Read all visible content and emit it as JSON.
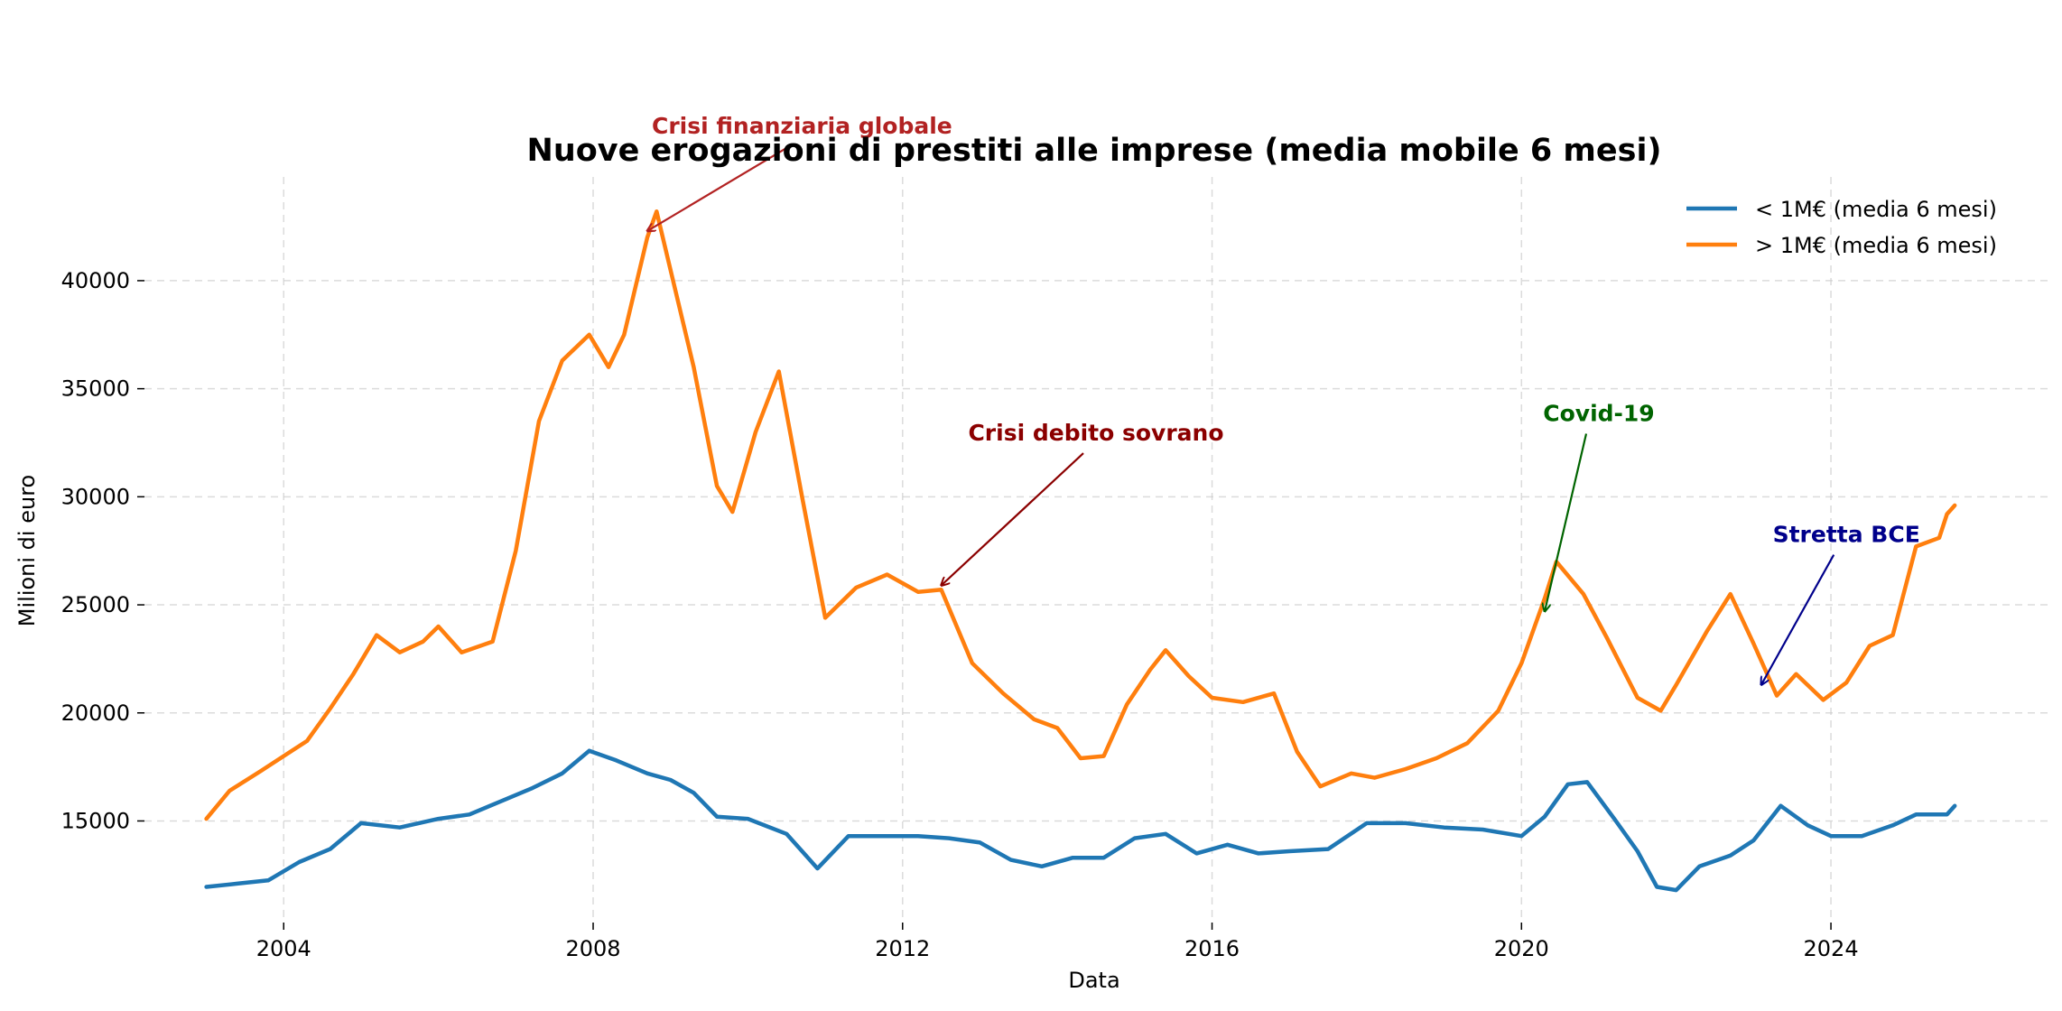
{
  "chart_data": {
    "type": "line",
    "title": "Nuove erogazioni di prestiti alle imprese (media mobile 6 mesi)",
    "xlabel": "Data",
    "ylabel": "Milioni di euro",
    "xlim": [
      2002.2,
      2026.8
    ],
    "ylim": [
      10300,
      44800
    ],
    "x_ticks": [
      2004,
      2008,
      2012,
      2016,
      2020,
      2024
    ],
    "x_tick_labels": [
      "2004",
      "2008",
      "2012",
      "2016",
      "2020",
      "2024"
    ],
    "y_ticks": [
      15000,
      20000,
      25000,
      30000,
      35000,
      40000
    ],
    "y_tick_labels": [
      "15000",
      "20000",
      "25000",
      "30000",
      "35000",
      "40000"
    ],
    "grid": true,
    "legend_position": "top-right",
    "series": [
      {
        "name": "< 1M€ (media 6 mesi)",
        "color": "#1f77b4",
        "points": [
          [
            2003.0,
            11950
          ],
          [
            2003.4,
            12100
          ],
          [
            2003.8,
            12250
          ],
          [
            2004.2,
            13100
          ],
          [
            2004.6,
            13700
          ],
          [
            2005.0,
            14900
          ],
          [
            2005.5,
            14700
          ],
          [
            2006.0,
            15100
          ],
          [
            2006.4,
            15300
          ],
          [
            2006.8,
            15900
          ],
          [
            2007.2,
            16500
          ],
          [
            2007.6,
            17200
          ],
          [
            2007.95,
            18250
          ],
          [
            2008.3,
            17800
          ],
          [
            2008.7,
            17200
          ],
          [
            2009.0,
            16900
          ],
          [
            2009.3,
            16300
          ],
          [
            2009.6,
            15200
          ],
          [
            2010.0,
            15100
          ],
          [
            2010.5,
            14400
          ],
          [
            2010.9,
            12800
          ],
          [
            2011.3,
            14300
          ],
          [
            2011.8,
            14300
          ],
          [
            2012.2,
            14300
          ],
          [
            2012.6,
            14200
          ],
          [
            2013.0,
            14000
          ],
          [
            2013.4,
            13200
          ],
          [
            2013.8,
            12900
          ],
          [
            2014.2,
            13300
          ],
          [
            2014.6,
            13300
          ],
          [
            2015.0,
            14200
          ],
          [
            2015.4,
            14400
          ],
          [
            2015.8,
            13500
          ],
          [
            2016.2,
            13900
          ],
          [
            2016.6,
            13500
          ],
          [
            2017.0,
            13600
          ],
          [
            2017.5,
            13700
          ],
          [
            2018.0,
            14900
          ],
          [
            2018.5,
            14900
          ],
          [
            2019.0,
            14700
          ],
          [
            2019.5,
            14600
          ],
          [
            2020.0,
            14300
          ],
          [
            2020.3,
            15200
          ],
          [
            2020.6,
            16700
          ],
          [
            2020.85,
            16800
          ],
          [
            2021.2,
            15100
          ],
          [
            2021.5,
            13600
          ],
          [
            2021.75,
            11950
          ],
          [
            2022.0,
            11800
          ],
          [
            2022.3,
            12900
          ],
          [
            2022.7,
            13400
          ],
          [
            2023.0,
            14100
          ],
          [
            2023.35,
            15700
          ],
          [
            2023.7,
            14800
          ],
          [
            2024.0,
            14300
          ],
          [
            2024.4,
            14300
          ],
          [
            2024.8,
            14800
          ],
          [
            2025.1,
            15300
          ],
          [
            2025.5,
            15300
          ],
          [
            2025.6,
            15700
          ]
        ]
      },
      {
        "name": "> 1M€ (media 6 mesi)",
        "color": "#ff7f0e",
        "points": [
          [
            2003.0,
            15100
          ],
          [
            2003.3,
            16400
          ],
          [
            2003.7,
            17300
          ],
          [
            2004.0,
            18000
          ],
          [
            2004.3,
            18700
          ],
          [
            2004.6,
            20200
          ],
          [
            2004.9,
            21800
          ],
          [
            2005.2,
            23600
          ],
          [
            2005.5,
            22800
          ],
          [
            2005.8,
            23300
          ],
          [
            2006.0,
            24000
          ],
          [
            2006.3,
            22800
          ],
          [
            2006.7,
            23300
          ],
          [
            2007.0,
            27500
          ],
          [
            2007.3,
            33500
          ],
          [
            2007.6,
            36300
          ],
          [
            2007.95,
            37500
          ],
          [
            2008.2,
            36000
          ],
          [
            2008.4,
            37500
          ],
          [
            2008.7,
            42000
          ],
          [
            2008.82,
            43200
          ],
          [
            2009.0,
            40500
          ],
          [
            2009.3,
            36000
          ],
          [
            2009.6,
            30500
          ],
          [
            2009.8,
            29300
          ],
          [
            2010.1,
            33000
          ],
          [
            2010.4,
            35800
          ],
          [
            2010.7,
            30000
          ],
          [
            2011.0,
            24400
          ],
          [
            2011.4,
            25800
          ],
          [
            2011.8,
            26400
          ],
          [
            2012.2,
            25600
          ],
          [
            2012.5,
            25700
          ],
          [
            2012.9,
            22300
          ],
          [
            2013.3,
            20900
          ],
          [
            2013.7,
            19700
          ],
          [
            2014.0,
            19300
          ],
          [
            2014.3,
            17900
          ],
          [
            2014.6,
            18000
          ],
          [
            2014.9,
            20400
          ],
          [
            2015.2,
            22000
          ],
          [
            2015.4,
            22900
          ],
          [
            2015.7,
            21700
          ],
          [
            2016.0,
            20700
          ],
          [
            2016.4,
            20500
          ],
          [
            2016.8,
            20900
          ],
          [
            2017.1,
            18200
          ],
          [
            2017.4,
            16600
          ],
          [
            2017.8,
            17200
          ],
          [
            2018.1,
            17000
          ],
          [
            2018.5,
            17400
          ],
          [
            2018.9,
            17900
          ],
          [
            2019.3,
            18600
          ],
          [
            2019.7,
            20100
          ],
          [
            2020.0,
            22300
          ],
          [
            2020.3,
            25300
          ],
          [
            2020.45,
            27000
          ],
          [
            2020.8,
            25500
          ],
          [
            2021.1,
            23500
          ],
          [
            2021.5,
            20700
          ],
          [
            2021.8,
            20100
          ],
          [
            2022.0,
            21300
          ],
          [
            2022.4,
            23800
          ],
          [
            2022.7,
            25500
          ],
          [
            2023.0,
            23200
          ],
          [
            2023.3,
            20800
          ],
          [
            2023.55,
            21800
          ],
          [
            2023.9,
            20600
          ],
          [
            2024.2,
            21400
          ],
          [
            2024.5,
            23100
          ],
          [
            2024.8,
            23600
          ],
          [
            2025.1,
            27700
          ],
          [
            2025.4,
            28100
          ],
          [
            2025.5,
            29200
          ],
          [
            2025.6,
            29600
          ]
        ]
      }
    ],
    "annotations": [
      {
        "text": "Crisi finanziaria globale",
        "color": "#b22222",
        "arrow_to": [
          2008.7,
          42300
        ],
        "label_at": [
          2010.7,
          46800
        ]
      },
      {
        "text": "Crisi debito sovrano",
        "color": "#8b0000",
        "arrow_to": [
          2012.5,
          25900
        ],
        "label_at": [
          2014.5,
          32600
        ]
      },
      {
        "text": "Covid-19",
        "color": "#006400",
        "arrow_to": [
          2020.3,
          24700
        ],
        "label_at": [
          2021.0,
          33500
        ]
      },
      {
        "text": "Stretta BCE",
        "color": "#00008b",
        "arrow_to": [
          2023.1,
          21300
        ],
        "label_at": [
          2024.2,
          27900
        ]
      }
    ]
  }
}
